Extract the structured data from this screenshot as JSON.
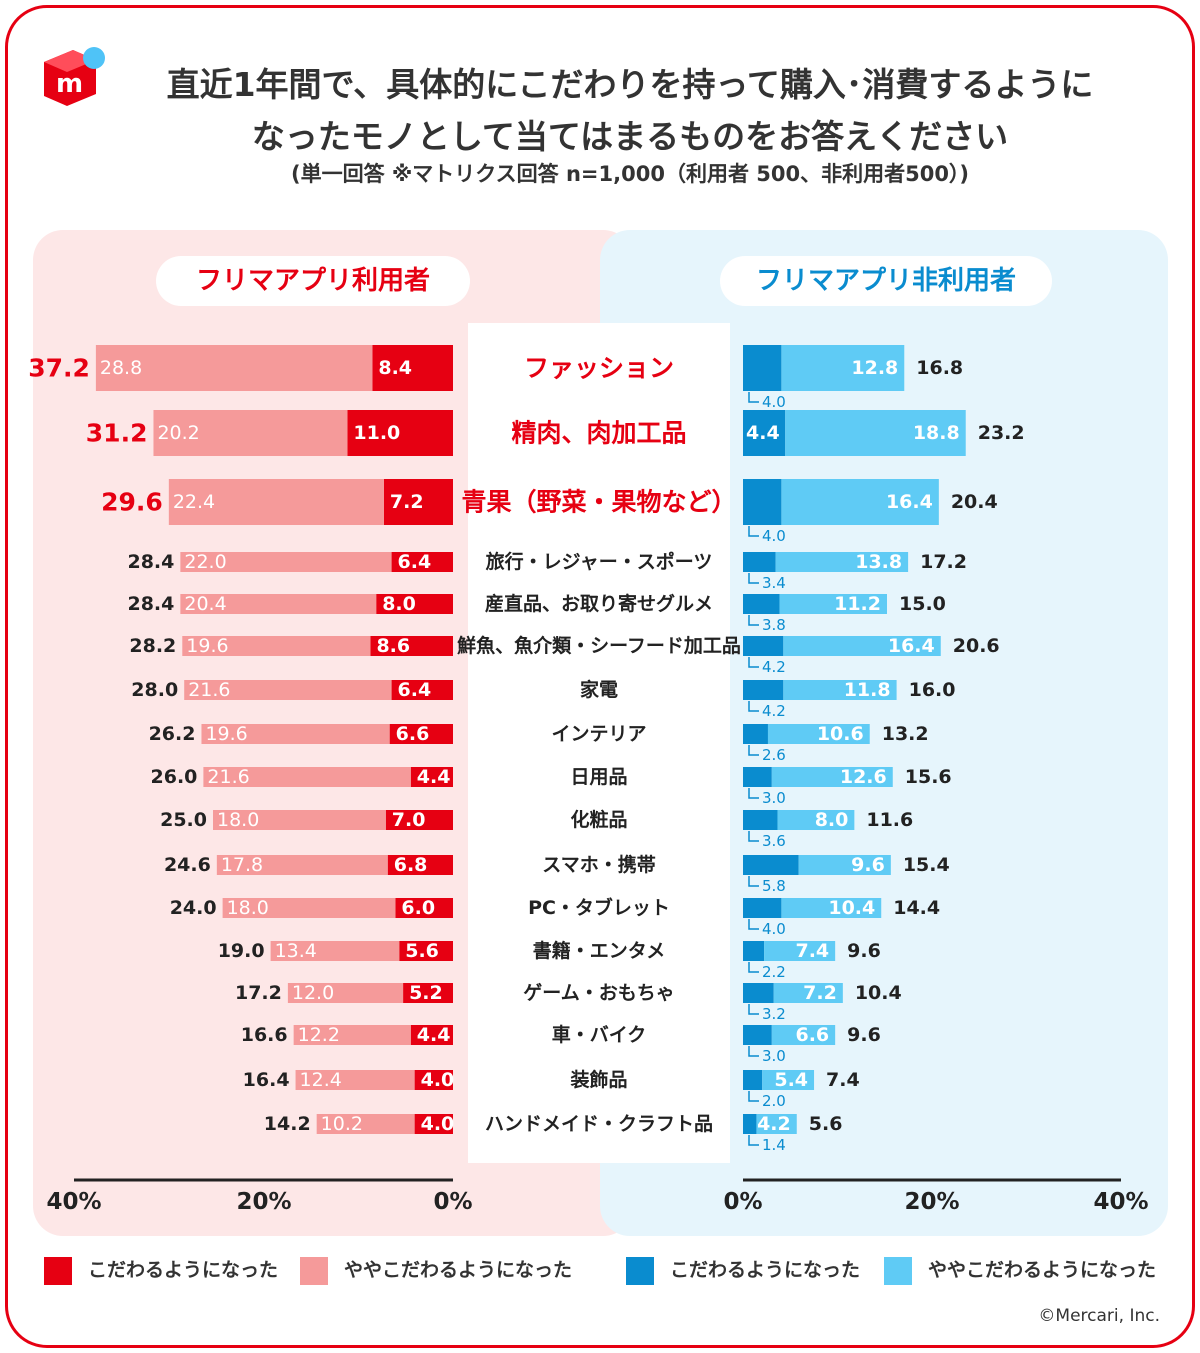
{
  "header": {
    "title_line1": "直近1年間で、具体的にこだわりを持って購入･消費するように",
    "title_line2": "なったモノとして当てはまるものをお答えください",
    "subtitle": "(単一回答 ※マトリクス回答 n=1,000（利用者 500、非利用者500）)"
  },
  "panels": {
    "left_label": "フリマアプリ利用者",
    "right_label": "フリマアプリ非利用者"
  },
  "legend": {
    "strong_label": "こだわるようになった",
    "slight_label": "ややこだわるようになった"
  },
  "colors": {
    "user_strong": "#e60012",
    "user_slight": "#f59a9a",
    "nonuser_strong": "#0a8ccf",
    "nonuser_slight": "#5fcbf5",
    "brand": "#e60012"
  },
  "credit": "©Mercari, Inc.",
  "chart_data": {
    "type": "bar",
    "categories": [
      "ファッション",
      "精肉、肉加工品",
      "青果（野菜・果物など）",
      "旅行・レジャー・スポーツ",
      "産直品、お取り寄せグルメ",
      "鮮魚、魚介類・シーフード加工品",
      "家電",
      "インテリア",
      "日用品",
      "化粧品",
      "スマホ・携帯",
      "PC・タブレット",
      "書籍・エンタメ",
      "ゲーム・おもちゃ",
      "車・バイク",
      "装飾品",
      "ハンドメイド・クラフト品"
    ],
    "highlight_categories": 3,
    "series": [
      {
        "name": "フリマアプリ利用者 こだわるようになった",
        "values": [
          8.4,
          11.0,
          7.2,
          6.4,
          8.0,
          8.6,
          6.4,
          6.6,
          4.4,
          7.0,
          6.8,
          6.0,
          5.6,
          5.2,
          4.4,
          4.0,
          4.0
        ]
      },
      {
        "name": "フリマアプリ利用者 ややこだわるようになった",
        "values": [
          28.8,
          20.2,
          22.4,
          22.0,
          20.4,
          19.6,
          21.6,
          19.6,
          21.6,
          18.0,
          17.8,
          18.0,
          13.4,
          12.0,
          12.2,
          12.4,
          10.2
        ]
      },
      {
        "name": "フリマアプリ非利用者 こだわるようになった",
        "values": [
          4.0,
          4.4,
          4.0,
          3.4,
          3.8,
          4.2,
          4.2,
          2.6,
          3.0,
          3.6,
          5.8,
          4.0,
          2.2,
          3.2,
          3.0,
          2.0,
          1.4
        ]
      },
      {
        "name": "フリマアプリ非利用者 ややこだわるようになった",
        "values": [
          12.8,
          18.8,
          16.4,
          13.8,
          11.2,
          16.4,
          11.8,
          10.6,
          12.6,
          8.0,
          9.6,
          10.4,
          7.4,
          7.2,
          6.6,
          5.4,
          4.2
        ]
      }
    ],
    "totals_user": [
      "37.2",
      "31.2",
      "29.6",
      "28.4",
      "28.4",
      "28.2",
      "28.0",
      "26.2",
      "26.0",
      "25.0",
      "24.6",
      "24.0",
      "19.0",
      "17.2",
      "16.6",
      "16.4",
      "14.2"
    ],
    "totals_nonuser": [
      "16.8",
      "23.2",
      "20.4",
      "17.2",
      "15.0",
      "20.6",
      "16.0",
      "13.2",
      "15.6",
      "11.6",
      "15.4",
      "14.4",
      "9.6",
      "10.4",
      "9.6",
      "7.4",
      "5.6"
    ],
    "labels_user_strong": [
      "8.4",
      "11.0",
      "7.2",
      "6.4",
      "8.0",
      "8.6",
      "6.4",
      "6.6",
      "4.4",
      "7.0",
      "6.8",
      "6.0",
      "5.6",
      "5.2",
      "4.4",
      "4.0",
      "4.0"
    ],
    "labels_user_slight": [
      "28.8",
      "20.2",
      "22.4",
      "22.0",
      "20.4",
      "19.6",
      "21.6",
      "19.6",
      "21.6",
      "18.0",
      "17.8",
      "18.0",
      "13.4",
      "12.0",
      "12.2",
      "12.4",
      "10.2"
    ],
    "labels_nonuser_strong": [
      "4.0",
      "4.4",
      "4.0",
      "3.4",
      "3.8",
      "4.2",
      "4.2",
      "2.6",
      "3.0",
      "3.6",
      "5.8",
      "4.0",
      "2.2",
      "3.2",
      "3.0",
      "2.0",
      "1.4"
    ],
    "labels_nonuser_slight": [
      "12.8",
      "18.8",
      "16.4",
      "13.8",
      "11.2",
      "16.4",
      "11.8",
      "10.6",
      "12.6",
      "8.0",
      "9.6",
      "10.4",
      "7.4",
      "7.2",
      "6.6",
      "5.4",
      "4.2"
    ],
    "xlim": [
      0,
      40
    ],
    "xticks": [
      "40%",
      "20%",
      "0%",
      "0%",
      "20%",
      "40%"
    ],
    "xlabel": "",
    "ylabel": "",
    "grid": false,
    "legend_position": "bottom"
  }
}
